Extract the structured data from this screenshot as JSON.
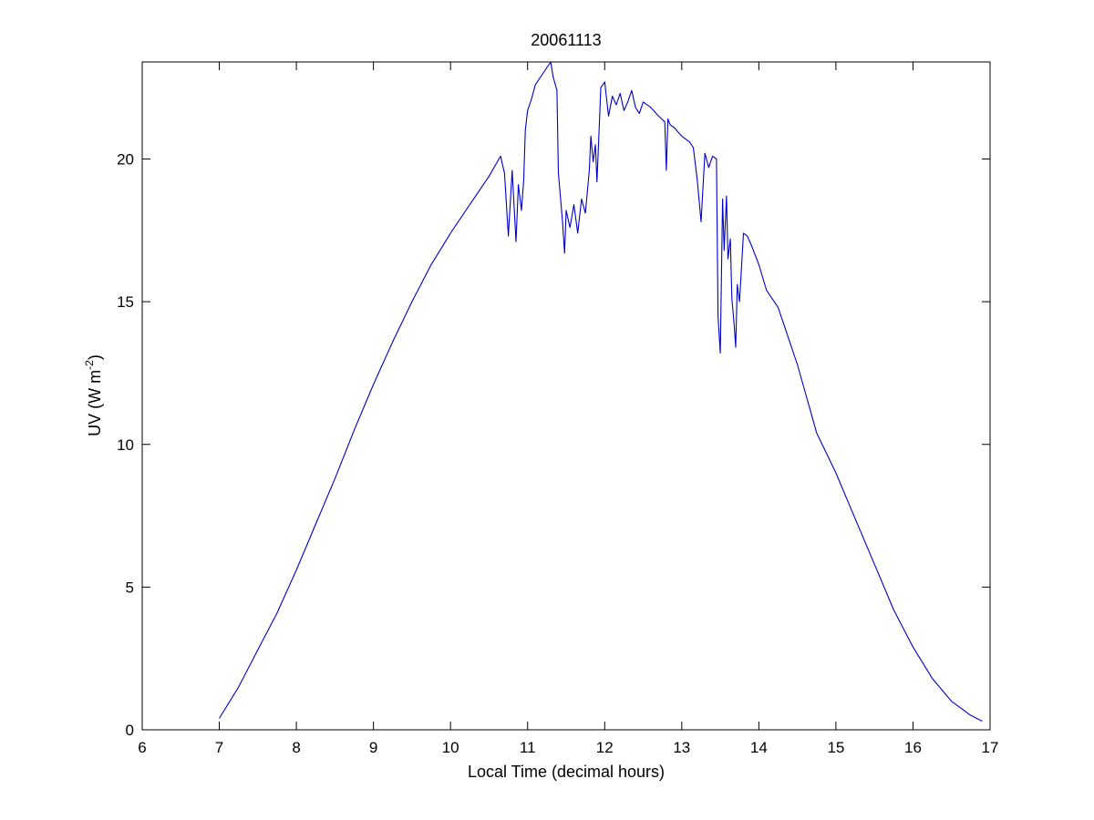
{
  "chart_data": {
    "type": "line",
    "title": "20061113",
    "xlabel": "Local Time (decimal hours)",
    "ylabel_main": "UV (W m",
    "ylabel_sup": "-2",
    "ylabel_close": ")",
    "xlim": [
      6,
      17
    ],
    "ylim": [
      0,
      23.4
    ],
    "xticks": [
      "6",
      "7",
      "8",
      "9",
      "10",
      "11",
      "12",
      "13",
      "14",
      "15",
      "16",
      "17"
    ],
    "yticks": [
      "0",
      "5",
      "10",
      "15",
      "20"
    ],
    "grid": false,
    "series": [
      {
        "color": "#0000cc",
        "x": [
          7.0,
          7.25,
          7.5,
          7.75,
          8.0,
          8.25,
          8.5,
          8.75,
          9.0,
          9.25,
          9.5,
          9.75,
          10.0,
          10.25,
          10.5,
          10.65,
          10.7,
          10.75,
          10.8,
          10.85,
          10.88,
          10.92,
          10.95,
          10.97,
          11.0,
          11.05,
          11.1,
          11.2,
          11.3,
          11.33,
          11.38,
          11.4,
          11.45,
          11.48,
          11.5,
          11.55,
          11.6,
          11.65,
          11.7,
          11.75,
          11.8,
          11.82,
          11.85,
          11.88,
          11.9,
          11.93,
          11.95,
          12.0,
          12.05,
          12.1,
          12.15,
          12.2,
          12.25,
          12.3,
          12.35,
          12.4,
          12.45,
          12.5,
          12.6,
          12.7,
          12.78,
          12.8,
          12.82,
          12.85,
          12.9,
          13.0,
          13.1,
          13.15,
          13.2,
          13.25,
          13.3,
          13.35,
          13.4,
          13.45,
          13.47,
          13.5,
          13.53,
          13.55,
          13.58,
          13.6,
          13.63,
          13.65,
          13.68,
          13.7,
          13.72,
          13.75,
          13.8,
          13.85,
          13.9,
          14.0,
          14.1,
          14.25,
          14.5,
          14.75,
          15.0,
          15.25,
          15.5,
          15.75,
          16.0,
          16.25,
          16.5,
          16.75,
          16.9
        ],
        "y": [
          0.4,
          1.5,
          2.8,
          4.1,
          5.6,
          7.2,
          8.8,
          10.5,
          12.1,
          13.6,
          15.0,
          16.3,
          17.4,
          18.4,
          19.4,
          20.1,
          19.5,
          17.3,
          19.6,
          17.1,
          19.1,
          18.2,
          19.3,
          21.0,
          21.7,
          22.1,
          22.6,
          23.0,
          23.4,
          22.9,
          22.4,
          19.5,
          17.9,
          16.7,
          18.2,
          17.6,
          18.4,
          17.4,
          18.6,
          18.1,
          19.6,
          20.8,
          19.9,
          20.5,
          19.2,
          21.2,
          22.5,
          22.7,
          21.5,
          22.2,
          21.9,
          22.3,
          21.7,
          22.0,
          22.4,
          21.8,
          21.6,
          22.0,
          21.8,
          21.5,
          21.3,
          19.6,
          21.4,
          21.2,
          21.1,
          20.8,
          20.6,
          20.4,
          19.3,
          17.8,
          20.2,
          19.7,
          20.1,
          20.0,
          14.5,
          13.2,
          18.6,
          16.8,
          18.7,
          16.5,
          17.2,
          15.1,
          14.2,
          13.4,
          15.6,
          15.0,
          17.4,
          17.3,
          17.0,
          16.3,
          15.4,
          14.8,
          12.8,
          10.4,
          9.0,
          7.4,
          5.8,
          4.2,
          2.9,
          1.8,
          1.0,
          0.5,
          0.3
        ]
      }
    ]
  }
}
